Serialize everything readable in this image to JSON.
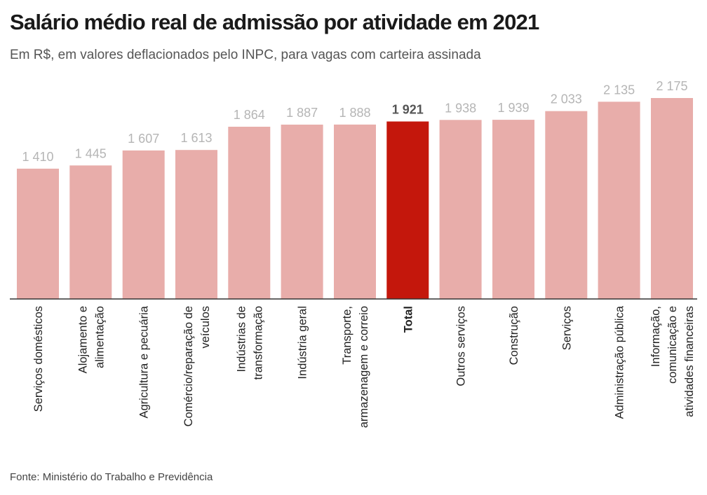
{
  "title": "Salário médio real de admissão por atividade em 2021",
  "subtitle": "Em R$, em valores deflacionados pelo INPC, para vagas com carteira assinada",
  "source": "Fonte: Ministério do Trabalho e Previdência",
  "colors": {
    "bar": "#e8adaa",
    "highlight": "#c4170c",
    "axis": "#333333"
  },
  "chart_data": {
    "type": "bar",
    "categories": [
      [
        "Serviços domésticos"
      ],
      [
        "Alojamento e",
        "alimentação"
      ],
      [
        "Agricultura e pecuária"
      ],
      [
        "Comércio/reparação de",
        "veículos"
      ],
      [
        "Indústrias de",
        "transformação"
      ],
      [
        "Indústria geral"
      ],
      [
        "Transporte,",
        "armazenagem e correio"
      ],
      [
        "Total"
      ],
      [
        "Outros serviços"
      ],
      [
        "Construção"
      ],
      [
        "Serviços"
      ],
      [
        "Administração pública"
      ],
      [
        "Informação,",
        "comunicação e",
        "atividades financeiras"
      ]
    ],
    "values": [
      1410,
      1445,
      1607,
      1613,
      1864,
      1887,
      1888,
      1921,
      1938,
      1939,
      2033,
      2135,
      2175
    ],
    "value_labels": [
      "1 410",
      "1 445",
      "1 607",
      "1 613",
      "1 864",
      "1 887",
      "1 888",
      "1 921",
      "1 938",
      "1 939",
      "2 033",
      "2 135",
      "2 175"
    ],
    "highlight_category": "Total",
    "ylim": [
      0,
      2175
    ],
    "grid": false,
    "legend": "none"
  }
}
